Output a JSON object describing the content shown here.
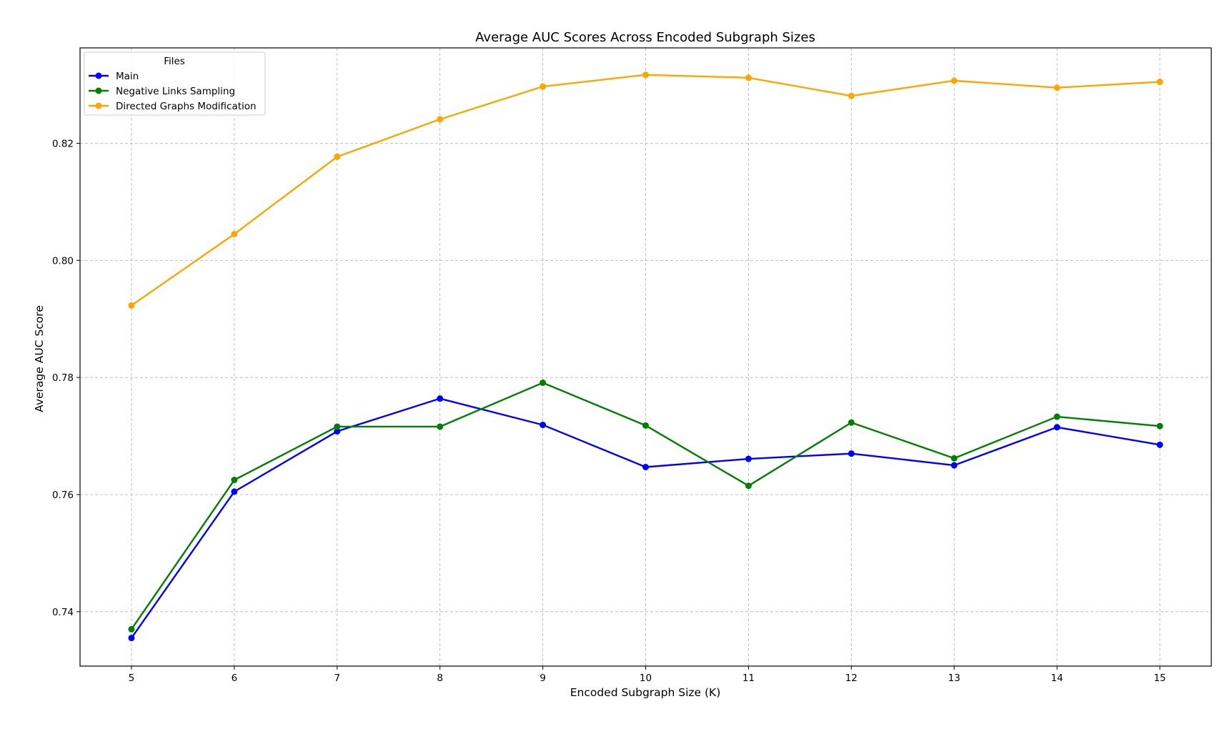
{
  "chart_data": {
    "type": "line",
    "title": "Average AUC Scores Across Encoded Subgraph Sizes",
    "xlabel": "Encoded Subgraph Size (K)",
    "ylabel": "Average AUC Score",
    "x": [
      5,
      6,
      7,
      8,
      9,
      10,
      11,
      12,
      13,
      14,
      15
    ],
    "xlim": [
      4.5,
      15.5
    ],
    "ylim": [
      0.7307,
      0.8363
    ],
    "xticks": [
      "5",
      "6",
      "7",
      "8",
      "9",
      "10",
      "11",
      "12",
      "13",
      "14",
      "15"
    ],
    "yticks": [
      "0.74",
      "0.76",
      "0.78",
      "0.80",
      "0.82"
    ],
    "grid": true,
    "legend": {
      "title": "Files",
      "placement": "top-left"
    },
    "series": [
      {
        "name": "Main",
        "color": "#0000ff",
        "values": [
          0.7355,
          0.7605,
          0.7708,
          0.7764,
          0.7719,
          0.7647,
          0.7661,
          0.767,
          0.765,
          0.7715,
          0.7685
        ]
      },
      {
        "name": "Negative Links Sampling",
        "color": "#008000",
        "values": [
          0.737,
          0.7625,
          0.7716,
          0.7716,
          0.7791,
          0.7718,
          0.7615,
          0.7723,
          0.7662,
          0.7733,
          0.7717
        ]
      },
      {
        "name": "Directed Graphs Modification",
        "color": "#ffa500",
        "values": [
          0.7923,
          0.8045,
          0.8177,
          0.8241,
          0.8297,
          0.8317,
          0.8312,
          0.8281,
          0.8307,
          0.8295,
          0.8305
        ]
      }
    ]
  }
}
